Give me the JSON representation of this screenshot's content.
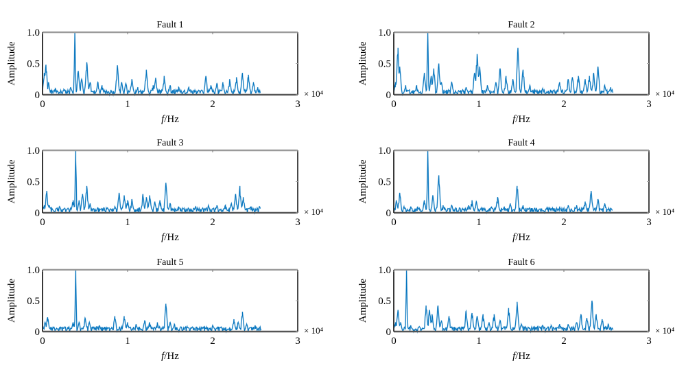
{
  "chart_data": [
    {
      "type": "line",
      "title": "Fault 1",
      "xlabel_italic": "f",
      "xlabel_rest": "/Hz",
      "ylabel": "Amplitude",
      "x_multiplier": "× 10⁴",
      "xlim": [
        0,
        3
      ],
      "ylim": [
        0,
        1.0
      ],
      "xticks": [
        "0",
        "1",
        "2",
        "3"
      ],
      "yticks": [
        "0",
        "0.5",
        "1.0"
      ],
      "grid": false,
      "color": "#0072BD",
      "peaks": [
        [
          0.02,
          0.35
        ],
        [
          0.04,
          0.48
        ],
        [
          0.07,
          0.2
        ],
        [
          0.15,
          0.1
        ],
        [
          0.25,
          0.08
        ],
        [
          0.33,
          0.12
        ],
        [
          0.38,
          1.0
        ],
        [
          0.42,
          0.38
        ],
        [
          0.46,
          0.25
        ],
        [
          0.52,
          0.52
        ],
        [
          0.56,
          0.2
        ],
        [
          0.65,
          0.2
        ],
        [
          0.7,
          0.15
        ],
        [
          0.88,
          0.47
        ],
        [
          0.93,
          0.2
        ],
        [
          0.98,
          0.18
        ],
        [
          1.05,
          0.25
        ],
        [
          1.12,
          0.12
        ],
        [
          1.22,
          0.4
        ],
        [
          1.3,
          0.15
        ],
        [
          1.33,
          0.27
        ],
        [
          1.43,
          0.3
        ],
        [
          1.5,
          0.15
        ],
        [
          1.6,
          0.12
        ],
        [
          1.72,
          0.12
        ],
        [
          1.92,
          0.3
        ],
        [
          1.98,
          0.15
        ],
        [
          2.05,
          0.18
        ],
        [
          2.12,
          0.2
        ],
        [
          2.2,
          0.25
        ],
        [
          2.28,
          0.28
        ],
        [
          2.35,
          0.35
        ],
        [
          2.42,
          0.32
        ],
        [
          2.48,
          0.2
        ],
        [
          2.53,
          0.12
        ]
      ],
      "x_end": 2.56
    },
    {
      "type": "line",
      "title": "Fault 2",
      "xlabel_italic": "f",
      "xlabel_rest": "/Hz",
      "ylabel": "Amplitude",
      "x_multiplier": "× 10⁴",
      "xlim": [
        0,
        3
      ],
      "ylim": [
        0,
        1.0
      ],
      "xticks": [
        "0",
        "1",
        "2",
        "3"
      ],
      "yticks": [
        "0",
        "0.5",
        "1.0"
      ],
      "grid": false,
      "color": "#0072BD",
      "peaks": [
        [
          0.02,
          0.2
        ],
        [
          0.05,
          0.75
        ],
        [
          0.07,
          0.45
        ],
        [
          0.14,
          0.15
        ],
        [
          0.27,
          0.15
        ],
        [
          0.36,
          0.35
        ],
        [
          0.4,
          1.0
        ],
        [
          0.44,
          0.3
        ],
        [
          0.47,
          0.42
        ],
        [
          0.53,
          0.5
        ],
        [
          0.56,
          0.2
        ],
        [
          0.68,
          0.2
        ],
        [
          0.85,
          0.12
        ],
        [
          0.95,
          0.35
        ],
        [
          0.98,
          0.65
        ],
        [
          1.01,
          0.45
        ],
        [
          1.1,
          0.15
        ],
        [
          1.2,
          0.2
        ],
        [
          1.25,
          0.42
        ],
        [
          1.32,
          0.3
        ],
        [
          1.4,
          0.25
        ],
        [
          1.46,
          0.75
        ],
        [
          1.52,
          0.4
        ],
        [
          1.6,
          0.15
        ],
        [
          1.75,
          0.1
        ],
        [
          1.95,
          0.2
        ],
        [
          2.05,
          0.25
        ],
        [
          2.1,
          0.28
        ],
        [
          2.17,
          0.3
        ],
        [
          2.25,
          0.25
        ],
        [
          2.3,
          0.3
        ],
        [
          2.35,
          0.35
        ],
        [
          2.4,
          0.45
        ],
        [
          2.48,
          0.15
        ],
        [
          2.55,
          0.12
        ]
      ],
      "x_end": 2.58
    },
    {
      "type": "line",
      "title": "Fault 3",
      "xlabel_italic": "f",
      "xlabel_rest": "/Hz",
      "ylabel": "Amplitude",
      "x_multiplier": "× 10⁴",
      "xlim": [
        0,
        3
      ],
      "ylim": [
        0,
        1.0
      ],
      "xticks": [
        "0",
        "1",
        "2",
        "3"
      ],
      "yticks": [
        "0",
        "0.5",
        "1.0"
      ],
      "grid": false,
      "color": "#0072BD",
      "peaks": [
        [
          0.02,
          0.12
        ],
        [
          0.05,
          0.35
        ],
        [
          0.08,
          0.12
        ],
        [
          0.2,
          0.1
        ],
        [
          0.3,
          0.08
        ],
        [
          0.36,
          0.2
        ],
        [
          0.39,
          1.0
        ],
        [
          0.43,
          0.2
        ],
        [
          0.47,
          0.3
        ],
        [
          0.52,
          0.43
        ],
        [
          0.56,
          0.15
        ],
        [
          0.65,
          0.08
        ],
        [
          0.85,
          0.1
        ],
        [
          0.9,
          0.32
        ],
        [
          0.96,
          0.28
        ],
        [
          1.0,
          0.2
        ],
        [
          1.05,
          0.22
        ],
        [
          1.18,
          0.3
        ],
        [
          1.22,
          0.25
        ],
        [
          1.26,
          0.28
        ],
        [
          1.32,
          0.18
        ],
        [
          1.38,
          0.2
        ],
        [
          1.45,
          0.48
        ],
        [
          1.5,
          0.15
        ],
        [
          1.6,
          0.1
        ],
        [
          1.8,
          0.1
        ],
        [
          1.95,
          0.12
        ],
        [
          2.05,
          0.12
        ],
        [
          2.15,
          0.12
        ],
        [
          2.22,
          0.15
        ],
        [
          2.27,
          0.3
        ],
        [
          2.32,
          0.43
        ],
        [
          2.36,
          0.25
        ],
        [
          2.45,
          0.1
        ],
        [
          2.55,
          0.1
        ]
      ],
      "x_end": 2.56
    },
    {
      "type": "line",
      "title": "Fault 4",
      "xlabel_italic": "f",
      "xlabel_rest": "/Hz",
      "ylabel": "Amplitude",
      "x_multiplier": "× 10⁴",
      "xlim": [
        0,
        3
      ],
      "ylim": [
        0,
        1.0
      ],
      "xticks": [
        "0",
        "1",
        "2",
        "3"
      ],
      "yticks": [
        "0",
        "0.5",
        "1.0"
      ],
      "grid": false,
      "color": "#0072BD",
      "peaks": [
        [
          0.03,
          0.2
        ],
        [
          0.07,
          0.32
        ],
        [
          0.12,
          0.1
        ],
        [
          0.2,
          0.1
        ],
        [
          0.28,
          0.1
        ],
        [
          0.36,
          0.2
        ],
        [
          0.4,
          1.0
        ],
        [
          0.46,
          0.28
        ],
        [
          0.53,
          0.6
        ],
        [
          0.58,
          0.12
        ],
        [
          0.68,
          0.12
        ],
        [
          0.88,
          0.12
        ],
        [
          0.92,
          0.2
        ],
        [
          0.97,
          0.18
        ],
        [
          1.05,
          0.08
        ],
        [
          1.15,
          0.1
        ],
        [
          1.22,
          0.25
        ],
        [
          1.3,
          0.1
        ],
        [
          1.37,
          0.15
        ],
        [
          1.45,
          0.43
        ],
        [
          1.52,
          0.12
        ],
        [
          1.6,
          0.06
        ],
        [
          1.8,
          0.08
        ],
        [
          1.95,
          0.1
        ],
        [
          2.05,
          0.12
        ],
        [
          2.15,
          0.12
        ],
        [
          2.25,
          0.18
        ],
        [
          2.32,
          0.35
        ],
        [
          2.4,
          0.22
        ],
        [
          2.48,
          0.15
        ],
        [
          2.55,
          0.08
        ]
      ],
      "x_end": 2.57
    },
    {
      "type": "line",
      "title": "Fault 5",
      "xlabel_italic": "f",
      "xlabel_rest": "/Hz",
      "ylabel": "Amplitude",
      "x_multiplier": "× 10⁴",
      "xlim": [
        0,
        3
      ],
      "ylim": [
        0,
        1.0
      ],
      "xticks": [
        "0",
        "1",
        "2",
        "3"
      ],
      "yticks": [
        "0",
        "0.5",
        "1.0"
      ],
      "grid": false,
      "color": "#0072BD",
      "peaks": [
        [
          0.03,
          0.15
        ],
        [
          0.06,
          0.23
        ],
        [
          0.1,
          0.05
        ],
        [
          0.2,
          0.05
        ],
        [
          0.3,
          0.05
        ],
        [
          0.36,
          0.15
        ],
        [
          0.39,
          1.0
        ],
        [
          0.43,
          0.15
        ],
        [
          0.5,
          0.22
        ],
        [
          0.55,
          0.15
        ],
        [
          0.67,
          0.1
        ],
        [
          0.85,
          0.25
        ],
        [
          0.96,
          0.25
        ],
        [
          1.0,
          0.15
        ],
        [
          1.1,
          0.12
        ],
        [
          1.2,
          0.18
        ],
        [
          1.26,
          0.15
        ],
        [
          1.35,
          0.15
        ],
        [
          1.45,
          0.45
        ],
        [
          1.5,
          0.15
        ],
        [
          1.55,
          0.12
        ],
        [
          1.7,
          0.08
        ],
        [
          1.9,
          0.08
        ],
        [
          2.0,
          0.1
        ],
        [
          2.1,
          0.08
        ],
        [
          2.25,
          0.2
        ],
        [
          2.3,
          0.15
        ],
        [
          2.35,
          0.32
        ],
        [
          2.4,
          0.12
        ],
        [
          2.5,
          0.1
        ],
        [
          2.55,
          0.06
        ]
      ],
      "x_end": 2.57
    },
    {
      "type": "line",
      "title": "Fault 6",
      "xlabel_italic": "f",
      "xlabel_rest": "/Hz",
      "ylabel": "Amplitude",
      "x_multiplier": "× 10⁴",
      "xlim": [
        0,
        3
      ],
      "ylim": [
        0,
        1.0
      ],
      "xticks": [
        "0",
        "1",
        "2",
        "3"
      ],
      "yticks": [
        "0",
        "0.5",
        "1.0"
      ],
      "grid": false,
      "color": "#0072BD",
      "peaks": [
        [
          0.02,
          0.15
        ],
        [
          0.05,
          0.35
        ],
        [
          0.08,
          0.15
        ],
        [
          0.15,
          1.0
        ],
        [
          0.2,
          0.1
        ],
        [
          0.3,
          0.08
        ],
        [
          0.38,
          0.42
        ],
        [
          0.42,
          0.35
        ],
        [
          0.45,
          0.28
        ],
        [
          0.52,
          0.42
        ],
        [
          0.56,
          0.18
        ],
        [
          0.65,
          0.25
        ],
        [
          0.75,
          0.05
        ],
        [
          0.85,
          0.33
        ],
        [
          0.92,
          0.3
        ],
        [
          0.98,
          0.25
        ],
        [
          1.05,
          0.28
        ],
        [
          1.12,
          0.15
        ],
        [
          1.18,
          0.28
        ],
        [
          1.25,
          0.18
        ],
        [
          1.35,
          0.38
        ],
        [
          1.45,
          0.48
        ],
        [
          1.5,
          0.12
        ],
        [
          1.65,
          0.08
        ],
        [
          1.75,
          0.1
        ],
        [
          1.85,
          0.1
        ],
        [
          1.95,
          0.12
        ],
        [
          2.05,
          0.12
        ],
        [
          2.15,
          0.15
        ],
        [
          2.2,
          0.28
        ],
        [
          2.27,
          0.22
        ],
        [
          2.33,
          0.5
        ],
        [
          2.38,
          0.28
        ],
        [
          2.45,
          0.2
        ],
        [
          2.52,
          0.12
        ]
      ],
      "x_end": 2.58
    }
  ]
}
